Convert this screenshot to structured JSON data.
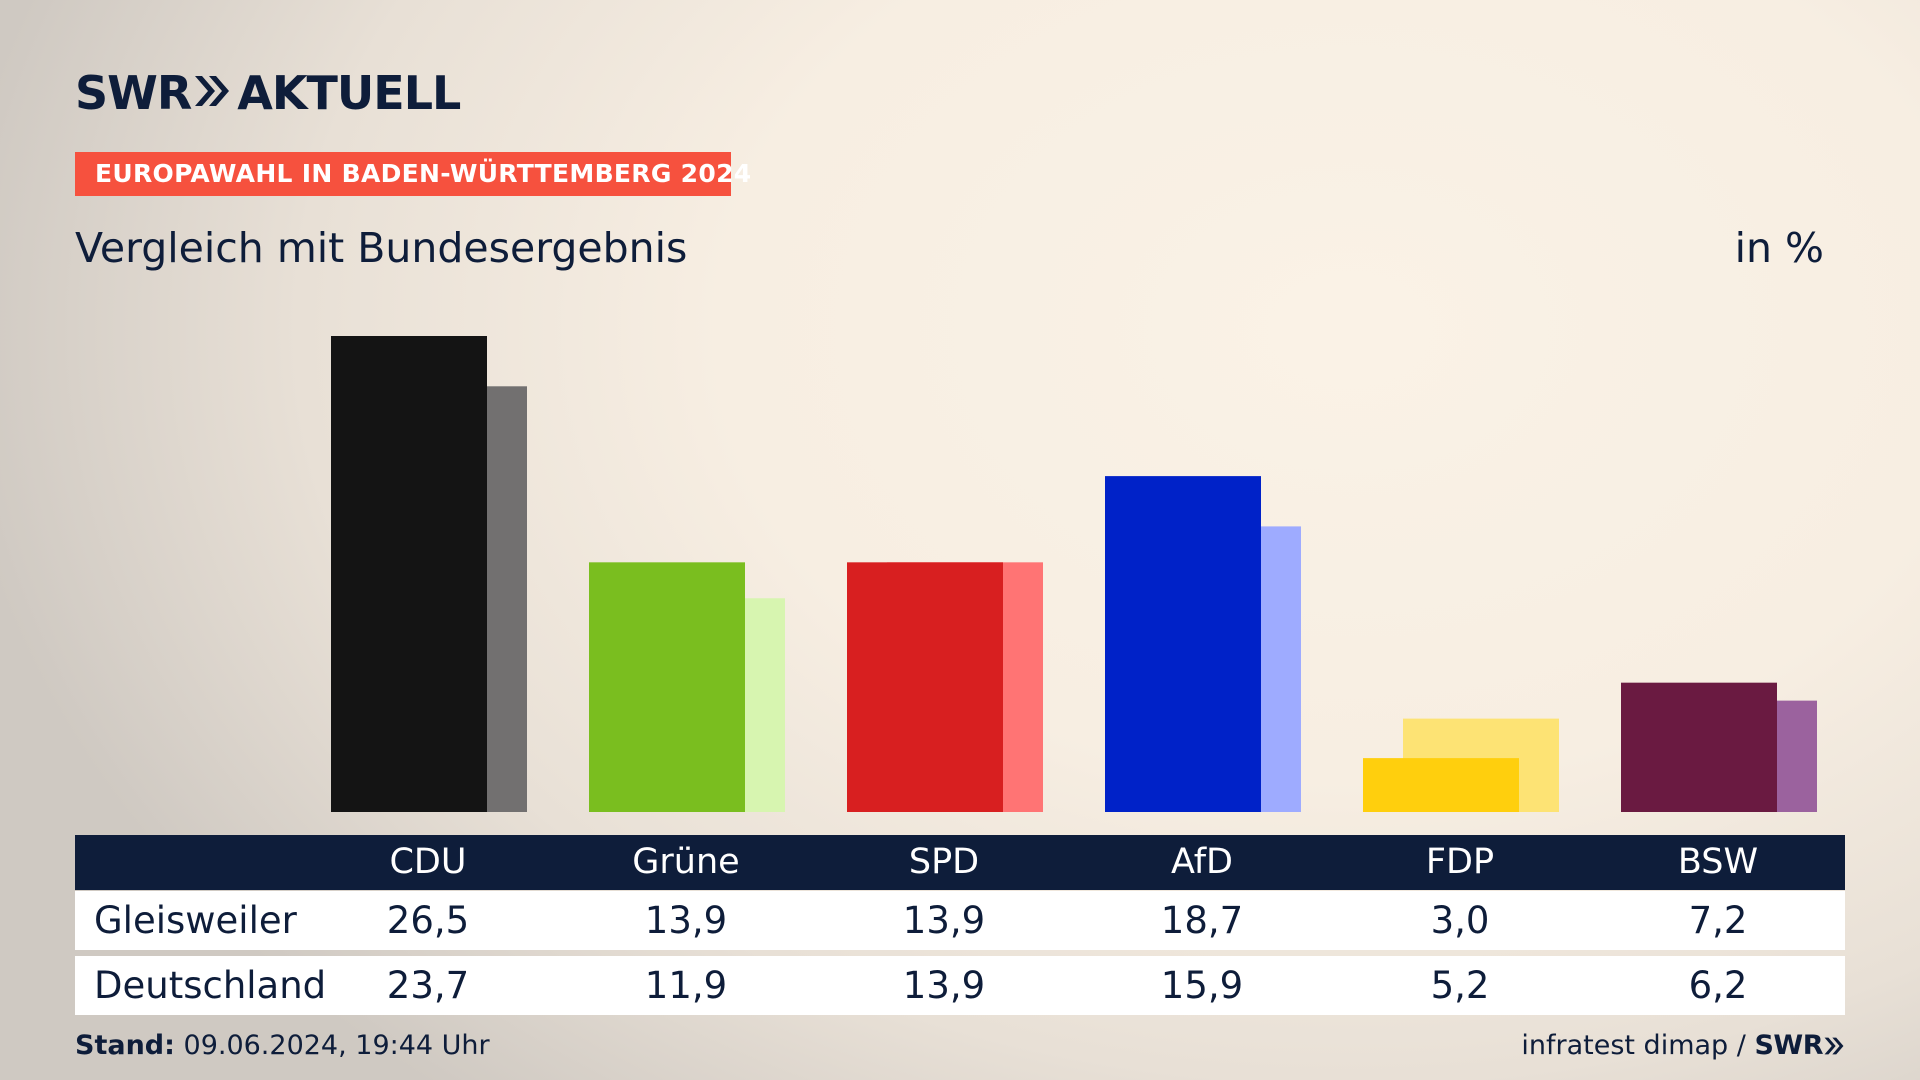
{
  "header": {
    "brand_left": "SWR",
    "brand_right": "AKTUELL",
    "tag": "EUROPAWAHL IN BADEN-WÜRTTEMBERG 2024",
    "subtitle": "Vergleich mit Bundesergebnis",
    "unit": "in %"
  },
  "chart_data": {
    "type": "bar",
    "categories": [
      "CDU",
      "Grüne",
      "SPD",
      "AfD",
      "FDP",
      "BSW"
    ],
    "series": [
      {
        "name": "Gleisweiler",
        "values": [
          26.5,
          13.9,
          13.9,
          18.7,
          3.0,
          7.2
        ]
      },
      {
        "name": "Deutschland",
        "values": [
          23.7,
          11.9,
          13.9,
          15.9,
          5.2,
          6.2
        ]
      }
    ],
    "ylim": [
      0,
      26.5
    ],
    "colors_primary": [
      "#141414",
      "#7abe1f",
      "#d81f20",
      "#0022c8",
      "#ffcf0d",
      "#6a1a41"
    ],
    "colors_secondary": [
      "#727070",
      "#d7f5b0",
      "#ff7474",
      "#9eabff",
      "#fde374",
      "#9b629e"
    ],
    "grid": false,
    "legend": "table-below"
  },
  "table": {
    "headers": [
      "CDU",
      "Grüne",
      "SPD",
      "AfD",
      "FDP",
      "BSW"
    ],
    "rows": [
      {
        "label": "Gleisweiler",
        "values": [
          "26,5",
          "13,9",
          "13,9",
          "18,7",
          "3,0",
          "7,2"
        ]
      },
      {
        "label": "Deutschland",
        "values": [
          "23,7",
          "11,9",
          "13,9",
          "15,9",
          "5,2",
          "6,2"
        ]
      }
    ]
  },
  "footer": {
    "stand_label": "Stand:",
    "stand_value": "09.06.2024, 19:44 Uhr",
    "source": "infratest dimap /",
    "source_brand": "SWR"
  }
}
